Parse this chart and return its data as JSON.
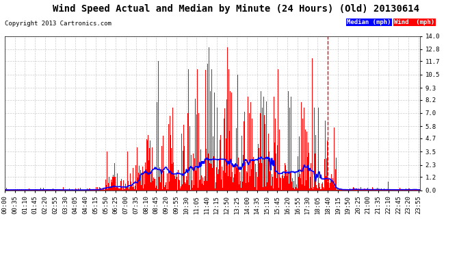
{
  "title": "Wind Speed Actual and Median by Minute (24 Hours) (Old) 20130614",
  "copyright": "Copyright 2013 Cartronics.com",
  "yticks": [
    0.0,
    1.2,
    2.3,
    3.5,
    4.7,
    5.8,
    7.0,
    8.2,
    9.3,
    10.5,
    11.7,
    12.8,
    14.0
  ],
  "ylim": [
    0.0,
    14.0
  ],
  "bg_color": "#ffffff",
  "grid_color": "#cccccc",
  "wind_color": "#ff0000",
  "median_color": "#0000ff",
  "title_fontsize": 10,
  "copyright_fontsize": 6.5,
  "tick_fontsize": 6.5,
  "dpi": 100,
  "figsize": [
    6.9,
    3.75
  ],
  "n_minutes": 1440,
  "xtick_interval": 35,
  "xtick_labels": [
    "00:00",
    "00:35",
    "01:10",
    "01:45",
    "02:20",
    "02:55",
    "03:30",
    "04:05",
    "04:40",
    "05:15",
    "05:50",
    "06:25",
    "07:00",
    "07:35",
    "08:10",
    "08:45",
    "09:20",
    "09:55",
    "10:30",
    "11:05",
    "11:40",
    "12:15",
    "12:50",
    "13:25",
    "14:00",
    "14:35",
    "15:10",
    "15:45",
    "16:20",
    "16:55",
    "17:30",
    "18:05",
    "18:40",
    "19:15",
    "19:50",
    "20:25",
    "21:00",
    "21:35",
    "22:10",
    "22:45",
    "23:20",
    "23:55"
  ],
  "wind_data_seed": 123
}
